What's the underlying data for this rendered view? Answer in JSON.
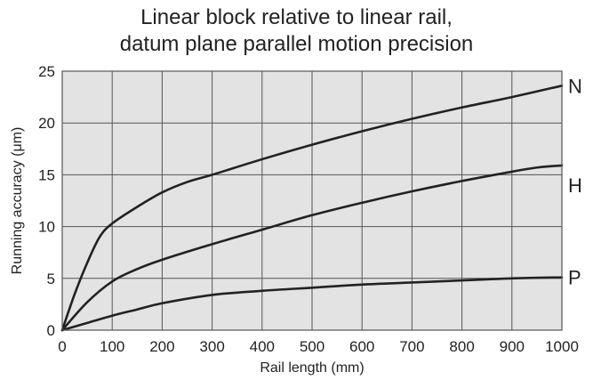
{
  "chart_data": {
    "type": "line",
    "title_line1": "Linear block relative to linear rail,",
    "title_line2": "datum plane parallel motion precision",
    "xlabel": "Rail length (mm)",
    "ylabel": "Running accuracy (μm)",
    "xlim": [
      0,
      1000
    ],
    "ylim": [
      0,
      25
    ],
    "xticks": [
      0,
      100,
      200,
      300,
      400,
      500,
      600,
      700,
      800,
      900,
      1000
    ],
    "yticks": [
      0,
      5,
      10,
      15,
      20,
      25
    ],
    "grid": true,
    "series": [
      {
        "name": "N",
        "color": "#222222",
        "x": [
          0,
          25,
          50,
          75,
          100,
          150,
          200,
          250,
          300,
          400,
          500,
          600,
          700,
          800,
          900,
          1000
        ],
        "y": [
          0,
          3.5,
          6.5,
          9.0,
          10.3,
          11.9,
          13.3,
          14.3,
          15.0,
          16.5,
          17.9,
          19.2,
          20.4,
          21.5,
          22.5,
          23.6
        ]
      },
      {
        "name": "H",
        "color": "#222222",
        "x": [
          0,
          50,
          100,
          150,
          200,
          300,
          400,
          500,
          600,
          700,
          800,
          900,
          950,
          1000
        ],
        "y": [
          0,
          2.7,
          4.7,
          5.9,
          6.8,
          8.3,
          9.7,
          11.1,
          12.3,
          13.4,
          14.4,
          15.3,
          15.7,
          15.9
        ]
      },
      {
        "name": "P",
        "color": "#222222",
        "x": [
          0,
          50,
          100,
          150,
          200,
          300,
          400,
          500,
          600,
          700,
          800,
          900,
          1000
        ],
        "y": [
          0,
          0.7,
          1.4,
          2.0,
          2.6,
          3.4,
          3.8,
          4.1,
          4.4,
          4.6,
          4.8,
          5.0,
          5.1
        ]
      }
    ]
  }
}
